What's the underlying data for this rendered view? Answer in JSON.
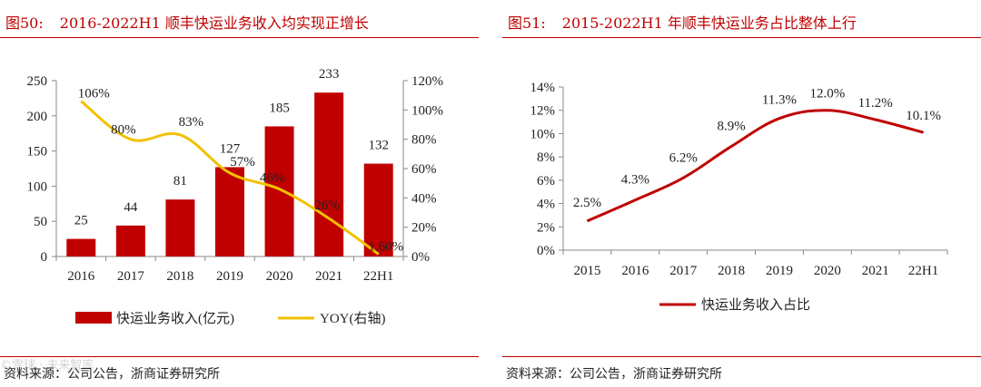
{
  "colors": {
    "bar": "#c00000",
    "yoy_line": "#f2c100",
    "line": "#c00000",
    "rule": "#c00000",
    "title": "#c00000"
  },
  "figures": [
    {
      "number": "图50:",
      "title": "2016-2022H1 顺丰快运业务收入均实现正增长",
      "source": "资料来源：公司公告，浙商证券研究所"
    },
    {
      "number": "图51:",
      "title": "2015-2022H1 年顺丰快运业务占比整体上行",
      "source": "资料来源：公司公告，浙商证券研究所"
    }
  ],
  "chart_data": [
    {
      "type": "bar",
      "categories": [
        "2016",
        "2017",
        "2018",
        "2019",
        "2020",
        "2021",
        "22H1"
      ],
      "series": [
        {
          "name": "快运业务收入(亿元)",
          "type": "bar",
          "axis": "left",
          "values": [
            25,
            44,
            81,
            127,
            185,
            233,
            132
          ],
          "labels": [
            "25",
            "44",
            "81",
            "127",
            "185",
            "233",
            "132"
          ]
        },
        {
          "name": "YOY(右轴)",
          "type": "line",
          "axis": "right",
          "smooth": true,
          "values": [
            106,
            80,
            83,
            57,
            46,
            26,
            1.6
          ],
          "labels": [
            "106%",
            "80%",
            "83%",
            "57%",
            "46%",
            "26%",
            "1.60%"
          ]
        }
      ],
      "ylim": [
        0,
        250
      ],
      "yticks": [
        "0",
        "50",
        "100",
        "150",
        "200",
        "250"
      ],
      "y2lim": [
        0,
        120
      ],
      "y2ticks": [
        "0%",
        "20%",
        "40%",
        "60%",
        "80%",
        "100%",
        "120%"
      ],
      "legend": "bottom",
      "grid": false
    },
    {
      "type": "line",
      "categories": [
        "2015",
        "2016",
        "2017",
        "2018",
        "2019",
        "2020",
        "2021",
        "22H1"
      ],
      "series": [
        {
          "name": "快运业务收入占比",
          "smooth": true,
          "values": [
            2.5,
            4.3,
            6.2,
            8.9,
            11.3,
            12.0,
            11.2,
            10.1
          ],
          "labels": [
            "2.5%",
            "4.3%",
            "6.2%",
            "8.9%",
            "11.3%",
            "12.0%",
            "11.2%",
            "10.1%"
          ]
        }
      ],
      "ylim": [
        0,
        14
      ],
      "yticks": [
        "0%",
        "2%",
        "4%",
        "6%",
        "8%",
        "10%",
        "12%",
        "14%"
      ],
      "legend": "bottom",
      "grid": false
    }
  ],
  "watermark": "©雪球 · 未来智库"
}
